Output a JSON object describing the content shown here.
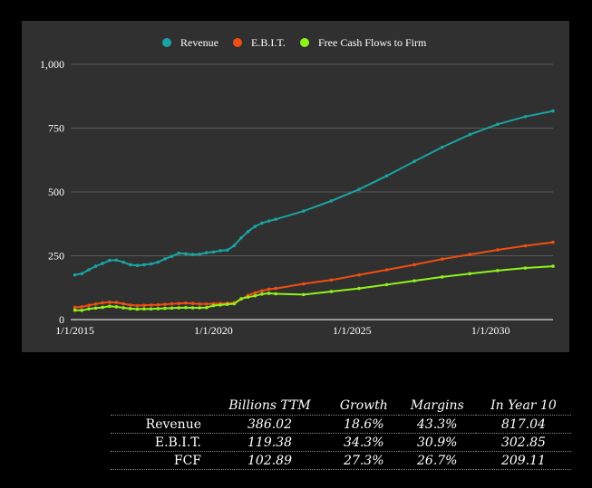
{
  "chart_data": {
    "type": "line",
    "y_ticks": [
      "0",
      "250",
      "500",
      "750",
      "1,000"
    ],
    "y_tick_values": [
      0,
      250,
      500,
      750,
      1000
    ],
    "ylim": [
      0,
      1000
    ],
    "x_ticks": [
      "1/1/2015",
      "1/1/2020",
      "1/1/2025",
      "1/1/2030"
    ],
    "x_tick_values": [
      2015,
      2020,
      2025,
      2030
    ],
    "xlim": [
      2014.85,
      2032.25
    ],
    "grid": true,
    "legend_position": "top",
    "series": [
      {
        "name": "Revenue",
        "color": "#1aa3a3",
        "x": [
          2015.0,
          2015.25,
          2015.5,
          2015.75,
          2016.0,
          2016.25,
          2016.5,
          2016.75,
          2017.0,
          2017.25,
          2017.5,
          2017.75,
          2018.0,
          2018.25,
          2018.5,
          2018.75,
          2019.0,
          2019.25,
          2019.5,
          2019.75,
          2020.0,
          2020.25,
          2020.5,
          2020.75,
          2021.0,
          2021.25,
          2021.5,
          2021.75,
          2022.0,
          2022.25,
          2023.25,
          2024.25,
          2025.25,
          2026.25,
          2027.25,
          2028.25,
          2029.25,
          2030.25,
          2031.25,
          2032.25
        ],
        "values": [
          175,
          180,
          195,
          209,
          220,
          232,
          233,
          225,
          215,
          212,
          215,
          218,
          225,
          238,
          248,
          260,
          258,
          255,
          256,
          262,
          265,
          270,
          272,
          290,
          320,
          345,
          365,
          378,
          386,
          393,
          425,
          465,
          510,
          563,
          620,
          675,
          725,
          765,
          795,
          817
        ]
      },
      {
        "name": "E.B.I.T.",
        "color": "#f04e12",
        "x": [
          2015.0,
          2015.25,
          2015.5,
          2015.75,
          2016.0,
          2016.25,
          2016.5,
          2016.75,
          2017.0,
          2017.25,
          2017.5,
          2017.75,
          2018.0,
          2018.25,
          2018.5,
          2018.75,
          2019.0,
          2019.25,
          2019.5,
          2019.75,
          2020.0,
          2020.25,
          2020.5,
          2020.75,
          2021.0,
          2021.25,
          2021.5,
          2021.75,
          2022.0,
          2022.25,
          2023.25,
          2024.25,
          2025.25,
          2026.25,
          2027.25,
          2028.25,
          2029.25,
          2030.25,
          2031.25,
          2032.25
        ],
        "values": [
          48,
          50,
          56,
          61,
          66,
          68,
          67,
          62,
          57,
          55,
          56,
          57,
          58,
          60,
          62,
          63,
          65,
          63,
          61,
          61,
          62,
          63,
          64,
          66,
          80,
          95,
          105,
          113,
          119,
          122,
          140,
          155,
          175,
          195,
          215,
          237,
          255,
          273,
          289,
          303
        ]
      },
      {
        "name": "Free Cash Flows to Firm",
        "color": "#8ff21a",
        "x": [
          2015.0,
          2015.25,
          2015.5,
          2015.75,
          2016.0,
          2016.25,
          2016.5,
          2016.75,
          2017.0,
          2017.25,
          2017.5,
          2017.75,
          2018.0,
          2018.25,
          2018.5,
          2018.75,
          2019.0,
          2019.25,
          2019.5,
          2019.75,
          2020.0,
          2020.25,
          2020.5,
          2020.75,
          2021.0,
          2021.25,
          2021.5,
          2021.75,
          2022.0,
          2022.25,
          2023.25,
          2024.25,
          2025.25,
          2026.25,
          2027.25,
          2028.25,
          2029.25,
          2030.25,
          2031.25,
          2032.25
        ],
        "values": [
          37,
          36,
          42,
          45,
          48,
          52,
          50,
          46,
          43,
          41,
          42,
          42,
          43,
          44,
          45,
          46,
          47,
          46,
          46,
          47,
          55,
          57,
          60,
          62,
          82,
          88,
          93,
          100,
          103,
          101,
          98,
          110,
          122,
          137,
          152,
          167,
          180,
          192,
          202,
          209
        ]
      }
    ]
  },
  "table": {
    "headers": [
      "Billions TTM",
      "Growth",
      "Margins",
      "In Year 10"
    ],
    "rows": [
      {
        "label": "Revenue",
        "values": [
          "386.02",
          "18.6%",
          "43.3%",
          "817.04"
        ]
      },
      {
        "label": "E.B.I.T.",
        "values": [
          "119.38",
          "34.3%",
          "30.9%",
          "302.85"
        ]
      },
      {
        "label": "FCF",
        "values": [
          "102.89",
          "27.3%",
          "26.7%",
          "209.11"
        ]
      }
    ]
  }
}
